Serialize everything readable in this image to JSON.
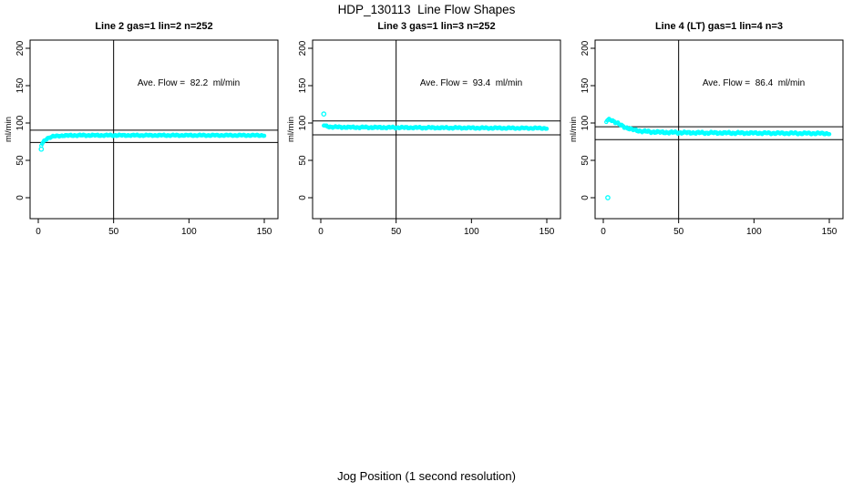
{
  "page": {
    "main_title": "HDP_130113  Line Flow Shapes",
    "outer_xlabel": "Jog Position (1 second resolution)",
    "background_color": "#ffffff",
    "axis_color": "#000000",
    "point_color": "#00ffff"
  },
  "chart_data": [
    {
      "type": "scatter",
      "title": "Line 2 gas=1 lin=2 n=252",
      "annotation": "Ave. Flow =  82.2  ml/min",
      "ave_flow_ml_min": 82.2,
      "ylabel": "ml/min",
      "xlim": [
        0,
        150
      ],
      "ylim": [
        0,
        200
      ],
      "x_ticks": [
        0,
        50,
        100,
        150
      ],
      "y_ticks": [
        0,
        50,
        100,
        150,
        200
      ],
      "vline_x": 50,
      "hlines": [
        74.0,
        90.4
      ],
      "hline_rule": "ave_flow plus/minus 10%",
      "point_style": "open-circle",
      "outlier_points": [
        [
          2,
          65
        ]
      ],
      "trend_points": [
        [
          2,
          70
        ],
        [
          3,
          73.5
        ],
        [
          4,
          76
        ],
        [
          5,
          78
        ],
        [
          6,
          79.5
        ],
        [
          8,
          81
        ],
        [
          10,
          82
        ],
        [
          15,
          83
        ],
        [
          25,
          83.5
        ],
        [
          60,
          83.5
        ],
        [
          100,
          83.5
        ],
        [
          150,
          83.5
        ]
      ],
      "band_spread": 1.2
    },
    {
      "type": "scatter",
      "title": "Line 3 gas=1 lin=3 n=252",
      "annotation": "Ave. Flow =  93.4  ml/min",
      "ave_flow_ml_min": 93.4,
      "ylabel": "ml/min",
      "xlim": [
        0,
        150
      ],
      "ylim": [
        0,
        200
      ],
      "x_ticks": [
        0,
        50,
        100,
        150
      ],
      "y_ticks": [
        0,
        50,
        100,
        150,
        200
      ],
      "vline_x": 50,
      "hlines": [
        84.1,
        102.7
      ],
      "hline_rule": "ave_flow plus/minus 10%",
      "point_style": "open-circle",
      "outlier_points": [
        [
          2,
          112
        ]
      ],
      "trend_points": [
        [
          2,
          97
        ],
        [
          3,
          96
        ],
        [
          4,
          95.5
        ],
        [
          6,
          95
        ],
        [
          10,
          94.5
        ],
        [
          20,
          94.2
        ],
        [
          40,
          94
        ],
        [
          80,
          93.6
        ],
        [
          120,
          93.2
        ],
        [
          150,
          93
        ]
      ],
      "band_spread": 1.4
    },
    {
      "type": "scatter",
      "title": "Line 4 (LT) gas=1 lin=4 n=3",
      "annotation": "Ave. Flow =  86.4  ml/min",
      "ave_flow_ml_min": 86.4,
      "ylabel": "ml/min",
      "xlim": [
        0,
        150
      ],
      "ylim": [
        0,
        200
      ],
      "x_ticks": [
        0,
        50,
        100,
        150
      ],
      "y_ticks": [
        0,
        50,
        100,
        150,
        200
      ],
      "vline_x": 50,
      "hlines": [
        77.8,
        95.0
      ],
      "hline_rule": "ave_flow plus/minus 10%",
      "point_style": "open-circle",
      "outlier_points": [
        [
          3,
          0
        ]
      ],
      "trend_points": [
        [
          2,
          102
        ],
        [
          3,
          104
        ],
        [
          5,
          104.5
        ],
        [
          7,
          102.5
        ],
        [
          9,
          100
        ],
        [
          12,
          96.5
        ],
        [
          15,
          94
        ],
        [
          18,
          92
        ],
        [
          22,
          90
        ],
        [
          26,
          89
        ],
        [
          30,
          88.3
        ],
        [
          40,
          87.5
        ],
        [
          55,
          87
        ],
        [
          80,
          86.7
        ],
        [
          120,
          86.3
        ],
        [
          150,
          86
        ]
      ],
      "band_spread": 1.8
    }
  ]
}
